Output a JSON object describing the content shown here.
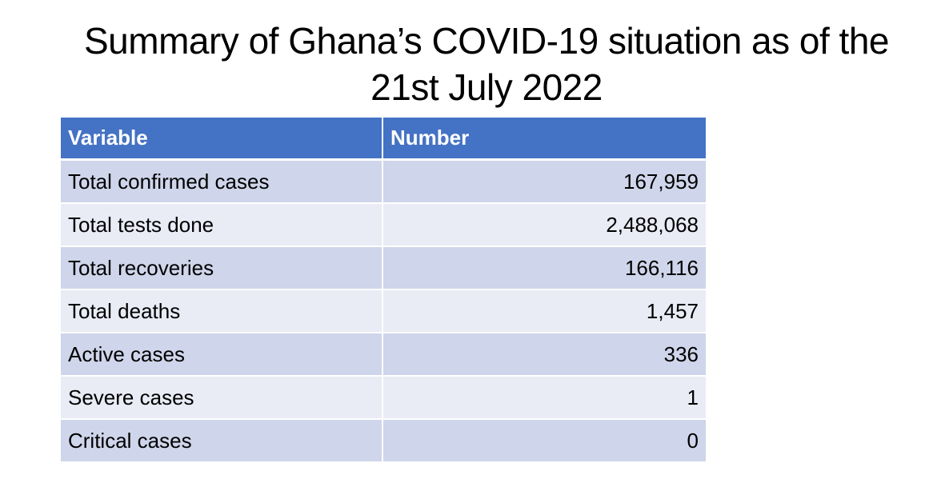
{
  "title": {
    "line1": "Summary of Ghana’s COVID-19 situation as of the",
    "line2": "21st July 2022"
  },
  "table": {
    "headers": [
      "Variable",
      "Number"
    ],
    "rows": [
      {
        "variable": "Total confirmed cases",
        "number": "167,959"
      },
      {
        "variable": "Total tests done",
        "number": "2,488,068"
      },
      {
        "variable": "Total recoveries",
        "number": "166,116"
      },
      {
        "variable": "Total deaths",
        "number": "1,457"
      },
      {
        "variable": "Active cases",
        "number": "336"
      },
      {
        "variable": "Severe cases",
        "number": "1"
      },
      {
        "variable": "Critical cases",
        "number": "0"
      }
    ]
  },
  "colors": {
    "header_background": "#4472c4",
    "row_band_dark": "#cfd5ea",
    "row_band_light": "#e9ebf5"
  }
}
